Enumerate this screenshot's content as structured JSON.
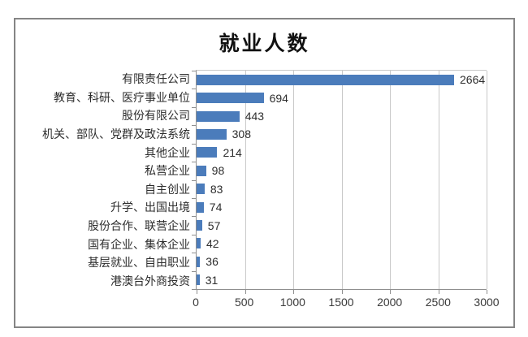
{
  "chart_data": {
    "type": "bar",
    "orientation": "horizontal",
    "title": "就业人数",
    "categories": [
      "有限责任公司",
      "教育、科研、医疗事业单位",
      "股份有限公司",
      "机关、部队、党群及政法系统",
      "其他企业",
      "私营企业",
      "自主创业",
      "升学、出国出境",
      "股份合作、联营企业",
      "国有企业、集体企业",
      "基层就业、自由职业",
      "港澳台外商投资"
    ],
    "values": [
      2664,
      694,
      443,
      308,
      214,
      98,
      83,
      74,
      57,
      42,
      36,
      31
    ],
    "value_labels": [
      "2664",
      "694",
      "443",
      "308",
      "214",
      "98",
      "83",
      "74",
      "57",
      "42",
      "36",
      "31"
    ],
    "xticks": [
      0,
      500,
      1000,
      1500,
      2000,
      2500,
      3000
    ],
    "xlim": [
      0,
      3000
    ],
    "xlabel": "",
    "ylabel": "",
    "grid": true,
    "legend": false,
    "bar_color": "#4b7cbb",
    "grid_color": "#c9c9c9",
    "axis_color": "#8f8f8f",
    "text_color": "#2d2d2d"
  }
}
